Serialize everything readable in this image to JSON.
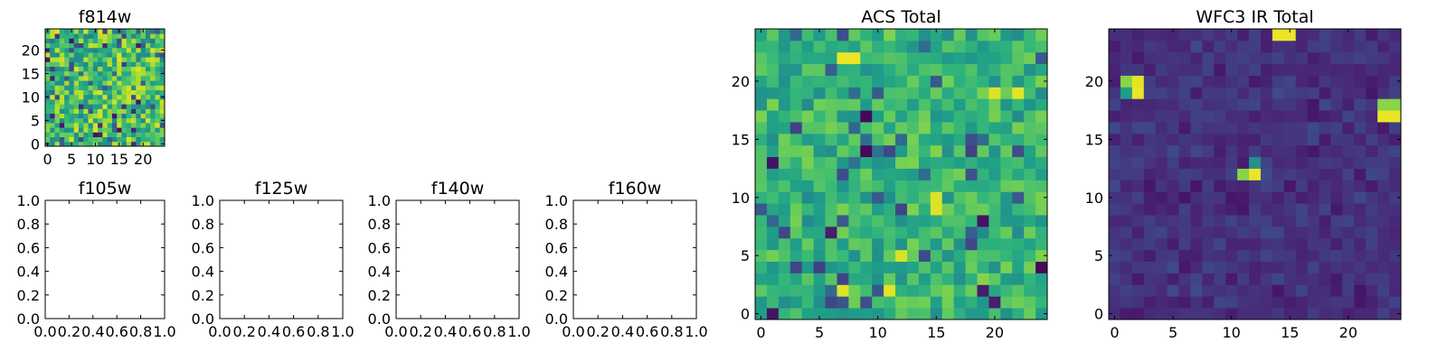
{
  "chart_data": [
    {
      "type": "heatmap",
      "title": "f814w",
      "colormap": "viridis",
      "nx": 25,
      "ny": 25,
      "xlim": [
        -0.5,
        24.5
      ],
      "ylim": [
        -0.5,
        24.5
      ],
      "xticks": [
        0,
        5,
        10,
        15,
        20
      ],
      "yticks": [
        0,
        5,
        10,
        15,
        20
      ],
      "value_range": [
        0,
        1
      ],
      "distribution": "mostly mid-high values (green/yellow) with scattered low (blue/purple) pixels",
      "seed": 11
    },
    {
      "type": "heatmap",
      "title": "f105w",
      "empty": true,
      "xlim": [
        0,
        1
      ],
      "ylim": [
        0,
        1
      ],
      "xticks": [
        "0.0",
        "0.2",
        "0.4",
        "0.6",
        "0.8",
        "1.0"
      ],
      "yticks": [
        "0.0",
        "0.2",
        "0.4",
        "0.6",
        "0.8",
        "1.0"
      ]
    },
    {
      "type": "heatmap",
      "title": "f125w",
      "empty": true,
      "xlim": [
        0,
        1
      ],
      "ylim": [
        0,
        1
      ],
      "xticks": [
        "0.0",
        "0.2",
        "0.4",
        "0.6",
        "0.8",
        "1.0"
      ],
      "yticks": [
        "0.0",
        "0.2",
        "0.4",
        "0.6",
        "0.8",
        "1.0"
      ]
    },
    {
      "type": "heatmap",
      "title": "f140w",
      "empty": true,
      "xlim": [
        0,
        1
      ],
      "ylim": [
        0,
        1
      ],
      "xticks": [
        "0.0",
        "0.2",
        "0.4",
        "0.6",
        "0.8",
        "1.0"
      ],
      "yticks": [
        "0.0",
        "0.2",
        "0.4",
        "0.6",
        "0.8",
        "1.0"
      ]
    },
    {
      "type": "heatmap",
      "title": "f160w",
      "empty": true,
      "xlim": [
        0,
        1
      ],
      "ylim": [
        0,
        1
      ],
      "xticks": [
        "0.0",
        "0.2",
        "0.4",
        "0.6",
        "0.8",
        "1.0"
      ],
      "yticks": [
        "0.0",
        "0.2",
        "0.4",
        "0.6",
        "0.8",
        "1.0"
      ]
    },
    {
      "type": "heatmap",
      "title": "ACS Total",
      "colormap": "viridis",
      "nx": 25,
      "ny": 25,
      "xlim": [
        -0.5,
        24.5
      ],
      "ylim": [
        -0.5,
        24.5
      ],
      "xticks": [
        0,
        5,
        10,
        15,
        20
      ],
      "yticks": [
        0,
        5,
        10,
        15,
        20
      ],
      "value_range": [
        0,
        1
      ],
      "distribution": "mostly green/yellow-green, a few dark purple pixels",
      "seed": 23,
      "hotspots": [
        {
          "x": 7,
          "y": 22,
          "v": 0.97
        },
        {
          "x": 8,
          "y": 22,
          "v": 0.97
        },
        {
          "x": 20,
          "y": 19,
          "v": 0.95
        },
        {
          "x": 22,
          "y": 19,
          "v": 0.96
        },
        {
          "x": 15,
          "y": 9,
          "v": 0.95
        },
        {
          "x": 15,
          "y": 10,
          "v": 0.95
        },
        {
          "x": 7,
          "y": 2,
          "v": 0.95
        },
        {
          "x": 11,
          "y": 2,
          "v": 0.96
        },
        {
          "x": 12,
          "y": 5,
          "v": 0.94
        }
      ],
      "lowspots": [
        {
          "x": 9,
          "y": 17,
          "v": 0.02
        },
        {
          "x": 9,
          "y": 14,
          "v": 0.02
        },
        {
          "x": 1,
          "y": 13,
          "v": 0.05
        },
        {
          "x": 1,
          "y": 0,
          "v": 0.05
        },
        {
          "x": 6,
          "y": 7,
          "v": 0.08
        },
        {
          "x": 19,
          "y": 8,
          "v": 0.05
        },
        {
          "x": 19,
          "y": 2,
          "v": 0.08
        },
        {
          "x": 20,
          "y": 1,
          "v": 0.08
        },
        {
          "x": 24,
          "y": 4,
          "v": 0.02
        }
      ]
    },
    {
      "type": "heatmap",
      "title": "WFC3 IR Total",
      "colormap": "viridis",
      "nx": 25,
      "ny": 25,
      "xlim": [
        -0.5,
        24.5
      ],
      "ylim": [
        -0.5,
        24.5
      ],
      "xticks": [
        0,
        5,
        10,
        15,
        20
      ],
      "yticks": [
        0,
        5,
        10,
        15,
        20
      ],
      "value_range": [
        0,
        1
      ],
      "distribution": "mostly dark purple/indigo with a few bright yellow-green sources",
      "seed": 37,
      "hotspots": [
        {
          "x": 14,
          "y": 24,
          "v": 0.97
        },
        {
          "x": 15,
          "y": 24,
          "v": 0.97
        },
        {
          "x": 1,
          "y": 20,
          "v": 0.82
        },
        {
          "x": 2,
          "y": 20,
          "v": 0.96
        },
        {
          "x": 1,
          "y": 19,
          "v": 0.55
        },
        {
          "x": 2,
          "y": 19,
          "v": 0.97
        },
        {
          "x": 23,
          "y": 18,
          "v": 0.82
        },
        {
          "x": 24,
          "y": 18,
          "v": 0.82
        },
        {
          "x": 23,
          "y": 17,
          "v": 0.97
        },
        {
          "x": 24,
          "y": 17,
          "v": 0.97
        },
        {
          "x": 11,
          "y": 12,
          "v": 0.82
        },
        {
          "x": 12,
          "y": 12,
          "v": 0.97
        },
        {
          "x": 12,
          "y": 13,
          "v": 0.5
        }
      ]
    }
  ]
}
